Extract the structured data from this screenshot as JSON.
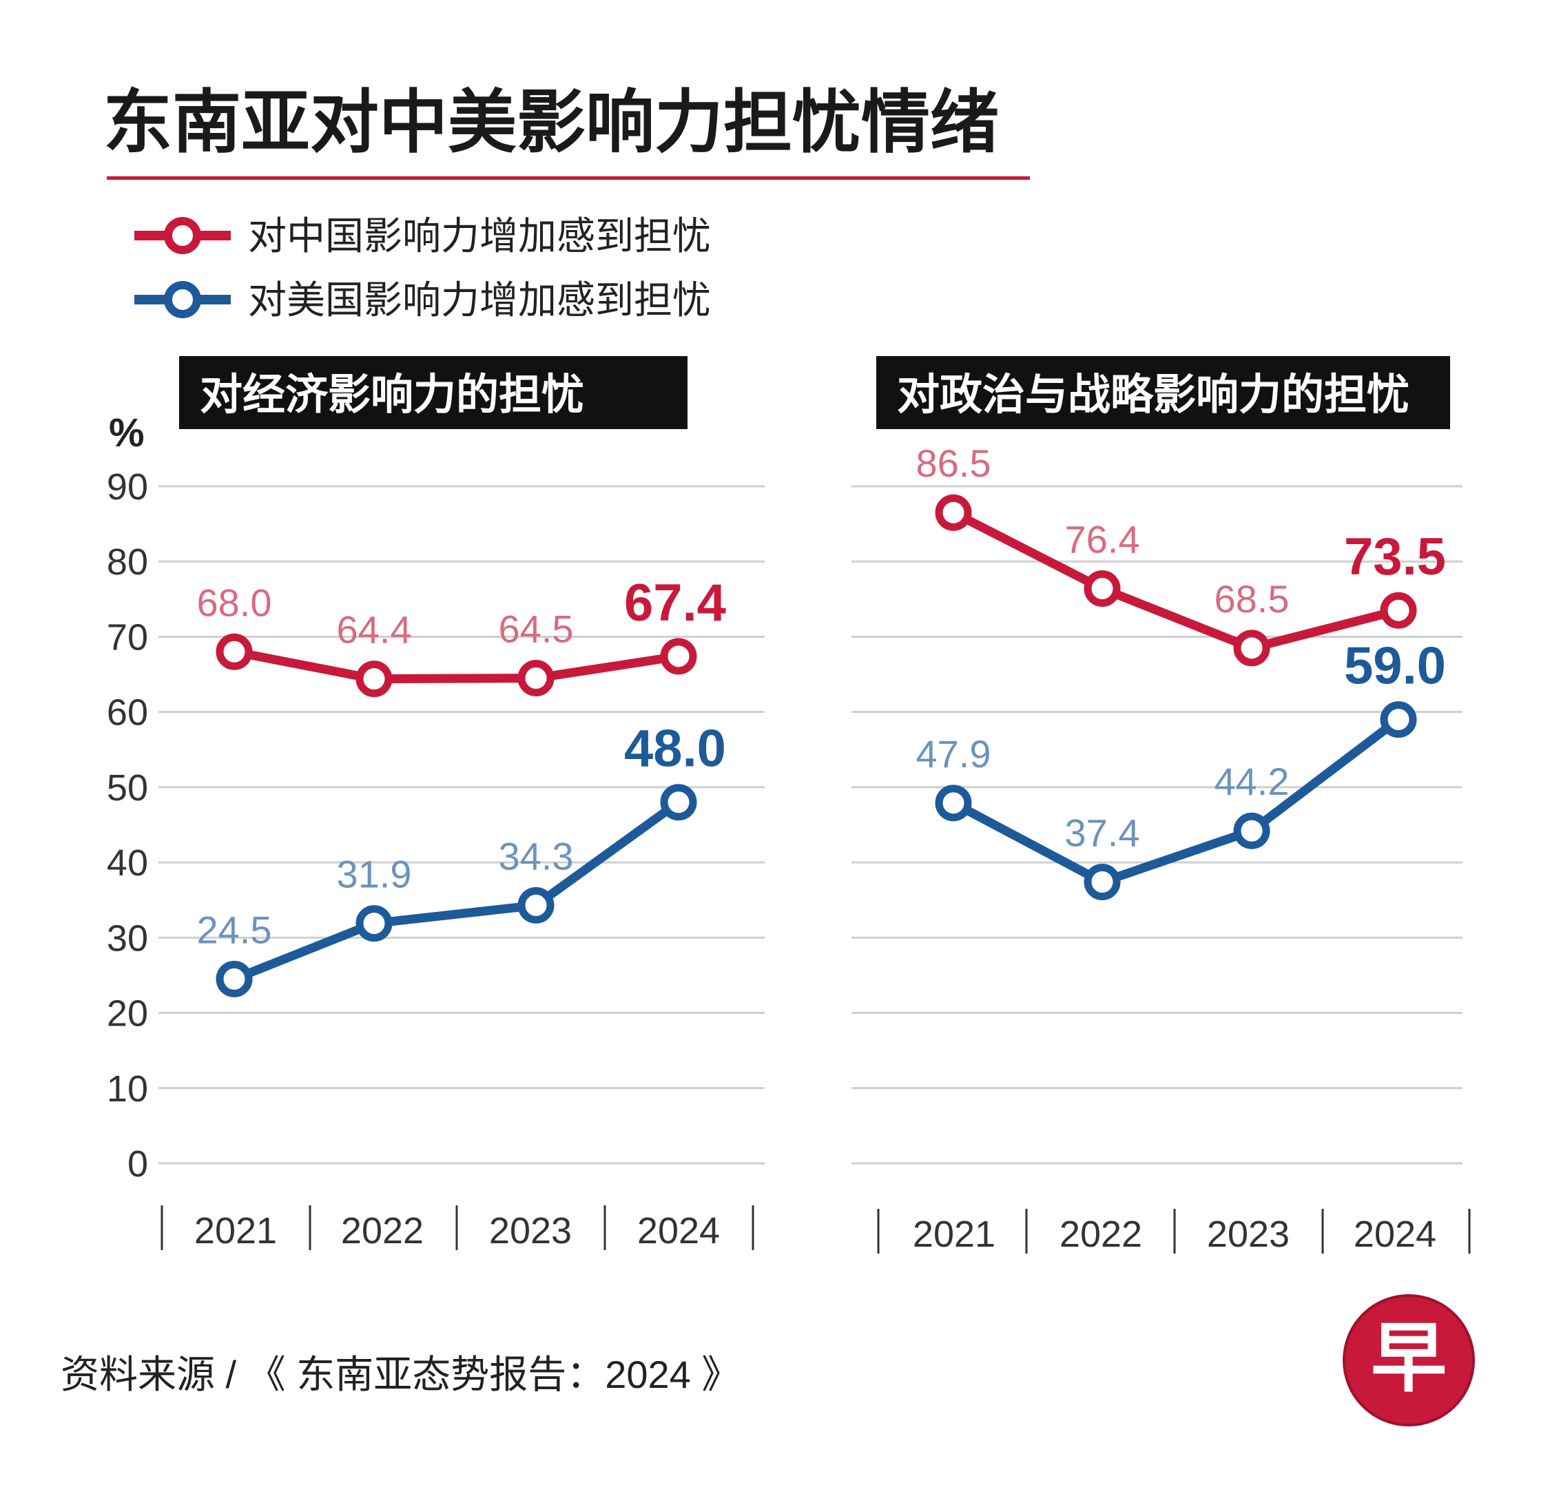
{
  "title": "东南亚对中美影响力担忧情绪",
  "legend": [
    {
      "label": "对中国影响力增加感到担忧",
      "color": "#c8193b"
    },
    {
      "label": "对美国影响力增加感到担忧",
      "color": "#1d5a99"
    }
  ],
  "unit": "%",
  "source": "资料来源 / 《 东南亚态势报告：2024 》",
  "logo_char": "早",
  "colors": {
    "china": "#c8193b",
    "china_light": "#d96a80",
    "us": "#1d5a99",
    "us_light": "#6b93bd",
    "grid": "#cfcfcf",
    "title_rule": "#c8193b",
    "panel_bg": "#111111"
  },
  "chart_data": [
    {
      "type": "line",
      "title": "对经济影响力的担忧",
      "categories": [
        "2021",
        "2022",
        "2023",
        "2024"
      ],
      "ylim": [
        0,
        90
      ],
      "yticks": [
        0,
        10,
        20,
        30,
        40,
        50,
        60,
        70,
        80,
        90
      ],
      "ylabel": "%",
      "series": [
        {
          "name": "对中国影响力增加感到担忧",
          "values": [
            68.0,
            64.4,
            64.5,
            67.4
          ],
          "labels": [
            "68.0",
            "64.4",
            "64.5",
            "67.4"
          ]
        },
        {
          "name": "对美国影响力增加感到担忧",
          "values": [
            24.5,
            31.9,
            34.3,
            48.0
          ],
          "labels": [
            "24.5",
            "31.9",
            "34.3",
            "48.0"
          ]
        }
      ]
    },
    {
      "type": "line",
      "title": "对政治与战略影响力的担忧",
      "categories": [
        "2021",
        "2022",
        "2023",
        "2024"
      ],
      "ylim": [
        0,
        90
      ],
      "yticks": [
        0,
        10,
        20,
        30,
        40,
        50,
        60,
        70,
        80,
        90
      ],
      "ylabel": "%",
      "series": [
        {
          "name": "对中国影响力增加感到担忧",
          "values": [
            86.5,
            76.4,
            68.5,
            73.5
          ],
          "labels": [
            "86.5",
            "76.4",
            "68.5",
            "73.5"
          ]
        },
        {
          "name": "对美国影响力增加感到担忧",
          "values": [
            47.9,
            37.4,
            44.2,
            59.0
          ],
          "labels": [
            "47.9",
            "37.4",
            "44.2",
            "59.0"
          ]
        }
      ]
    }
  ]
}
